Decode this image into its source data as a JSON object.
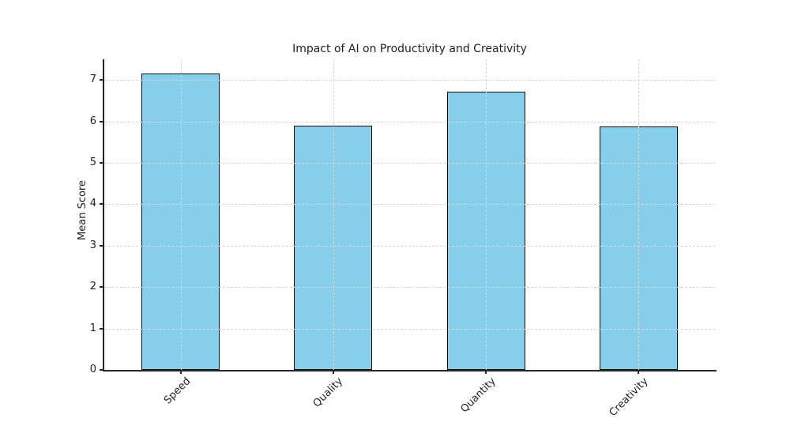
{
  "figure": {
    "title": "Impact of AI on Productivity and Creativity",
    "ylabel": "Mean Score"
  },
  "chart_data": {
    "type": "bar",
    "title": "Impact of AI on Productivity and Creativity",
    "categories": [
      "Speed",
      "Quality",
      "Quantity",
      "Creativity"
    ],
    "values": [
      7.15,
      5.9,
      6.72,
      5.88
    ],
    "xlabel": "",
    "ylabel": "Mean Score",
    "ylim": [
      0,
      7.5
    ],
    "yticks": [
      0,
      1,
      2,
      3,
      4,
      5,
      6,
      7
    ],
    "grid": true,
    "grid_style": "dashed",
    "legend": "none",
    "xtick_rotation": 45,
    "bar_color": "#87CEEB",
    "bar_edge_color": "#111111",
    "grid_color": "#d4d4d4",
    "axis_color": "#262626",
    "text_color": "#222222",
    "background_color": "#ffffff"
  }
}
